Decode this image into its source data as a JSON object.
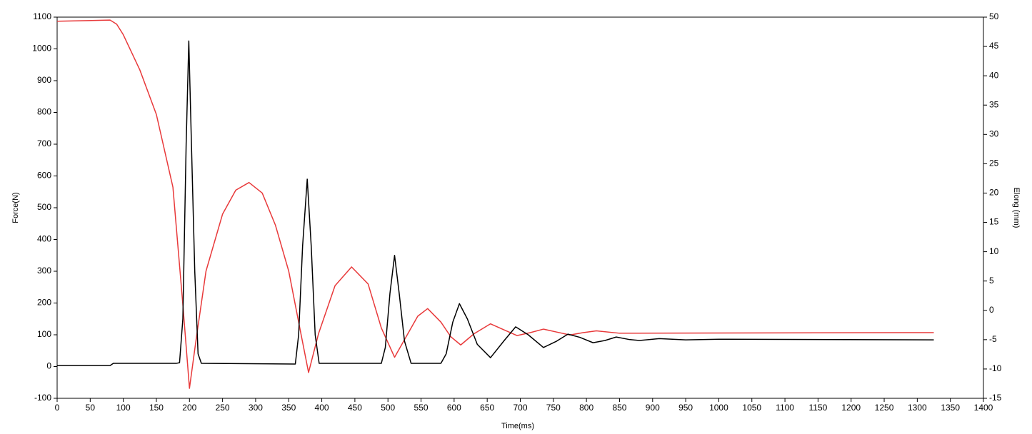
{
  "chart_data": {
    "type": "line",
    "xlabel": "Time(ms)",
    "ylabel": "Force(N)",
    "y2label": "Elong (mm)",
    "xlim": [
      0,
      1400
    ],
    "xticks": [
      0,
      50,
      100,
      150,
      200,
      250,
      300,
      350,
      400,
      450,
      500,
      550,
      600,
      650,
      700,
      750,
      800,
      850,
      900,
      950,
      1000,
      1050,
      1100,
      1150,
      1200,
      1250,
      1300,
      1350,
      1400
    ],
    "ylim": [
      -100,
      1100
    ],
    "yticks": [
      -100,
      0,
      100,
      200,
      300,
      400,
      500,
      600,
      700,
      800,
      900,
      1000,
      1100
    ],
    "y2lim": [
      -15,
      50
    ],
    "y2ticks": [
      -15,
      -10,
      -5,
      0,
      5,
      10,
      15,
      20,
      25,
      30,
      35,
      40,
      45,
      50
    ],
    "grid": true,
    "series": [
      {
        "color": "#000000",
        "axis": "y",
        "x": [
          0,
          80,
          85,
          180,
          185,
          190,
          195,
          199,
          203,
          208,
          213,
          218,
          360,
          365,
          371,
          378,
          384,
          390,
          396,
          490,
          496,
          503,
          510,
          517,
          525,
          535,
          580,
          588,
          598,
          608,
          620,
          635,
          655,
          675,
          693,
          712,
          735,
          755,
          772,
          790,
          810,
          828,
          845,
          865,
          880,
          910,
          950,
          1000,
          1325
        ],
        "values": [
          3,
          3,
          10,
          10,
          12,
          150,
          700,
          1025,
          700,
          300,
          40,
          10,
          8,
          100,
          380,
          590,
          380,
          100,
          10,
          10,
          60,
          230,
          350,
          230,
          80,
          10,
          10,
          40,
          140,
          198,
          150,
          70,
          28,
          80,
          125,
          100,
          60,
          80,
          102,
          92,
          75,
          82,
          93,
          85,
          82,
          88,
          84,
          86,
          84
        ]
      },
      {
        "color": "#e8393a",
        "axis": "y2",
        "x": [
          0,
          80,
          90,
          100,
          125,
          150,
          175,
          190,
          200,
          210,
          225,
          250,
          270,
          290,
          310,
          330,
          350,
          365,
          380,
          395,
          420,
          445,
          470,
          490,
          510,
          530,
          545,
          560,
          580,
          595,
          610,
          630,
          655,
          675,
          695,
          715,
          735,
          755,
          775,
          795,
          815,
          850,
          1325
        ],
        "values": [
          49.3,
          49.5,
          48.8,
          47,
          41,
          33.4,
          21,
          1,
          -13.3,
          -5,
          6.7,
          16.4,
          20.5,
          21.8,
          20,
          14.5,
          6.7,
          -2,
          -10.6,
          -4,
          4.2,
          7.4,
          4.5,
          -3,
          -8,
          -4,
          -1,
          0.3,
          -2,
          -4.5,
          -5.9,
          -4,
          -2.3,
          -3.3,
          -4.3,
          -3.8,
          -3.2,
          -3.7,
          -4.2,
          -3.8,
          -3.5,
          -3.9,
          -3.8
        ]
      }
    ]
  }
}
